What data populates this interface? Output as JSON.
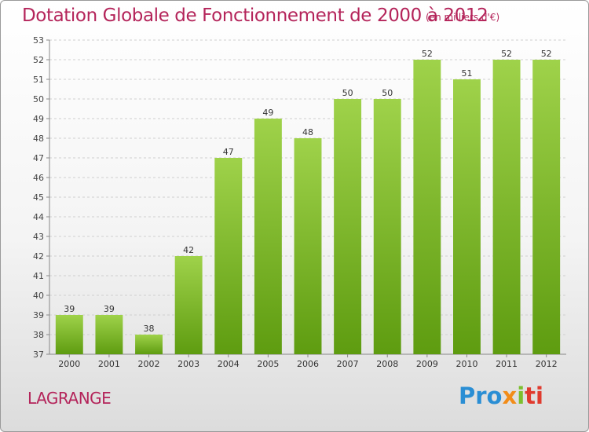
{
  "chart_data": {
    "type": "bar",
    "title": "Dotation Globale de Fonctionnement de 2000 à 2012",
    "subtitle": "(en milliers d'€)",
    "categories": [
      "2000",
      "2001",
      "2002",
      "2003",
      "2004",
      "2005",
      "2006",
      "2007",
      "2008",
      "2009",
      "2010",
      "2011",
      "2012"
    ],
    "values": [
      39,
      39,
      38,
      42,
      47,
      49,
      48,
      50,
      50,
      52,
      51,
      52,
      52
    ],
    "ylim": [
      37,
      53
    ],
    "yticks": [
      37,
      38,
      39,
      40,
      41,
      42,
      43,
      44,
      45,
      46,
      47,
      48,
      49,
      50,
      51,
      52,
      53
    ],
    "grid": true,
    "bar_color_top": "#9fd24a",
    "bar_color_bottom": "#5e9c10"
  },
  "commune": "LAGRANGE",
  "logo": {
    "parts": [
      "Pro",
      "x",
      "i",
      "ti"
    ]
  }
}
